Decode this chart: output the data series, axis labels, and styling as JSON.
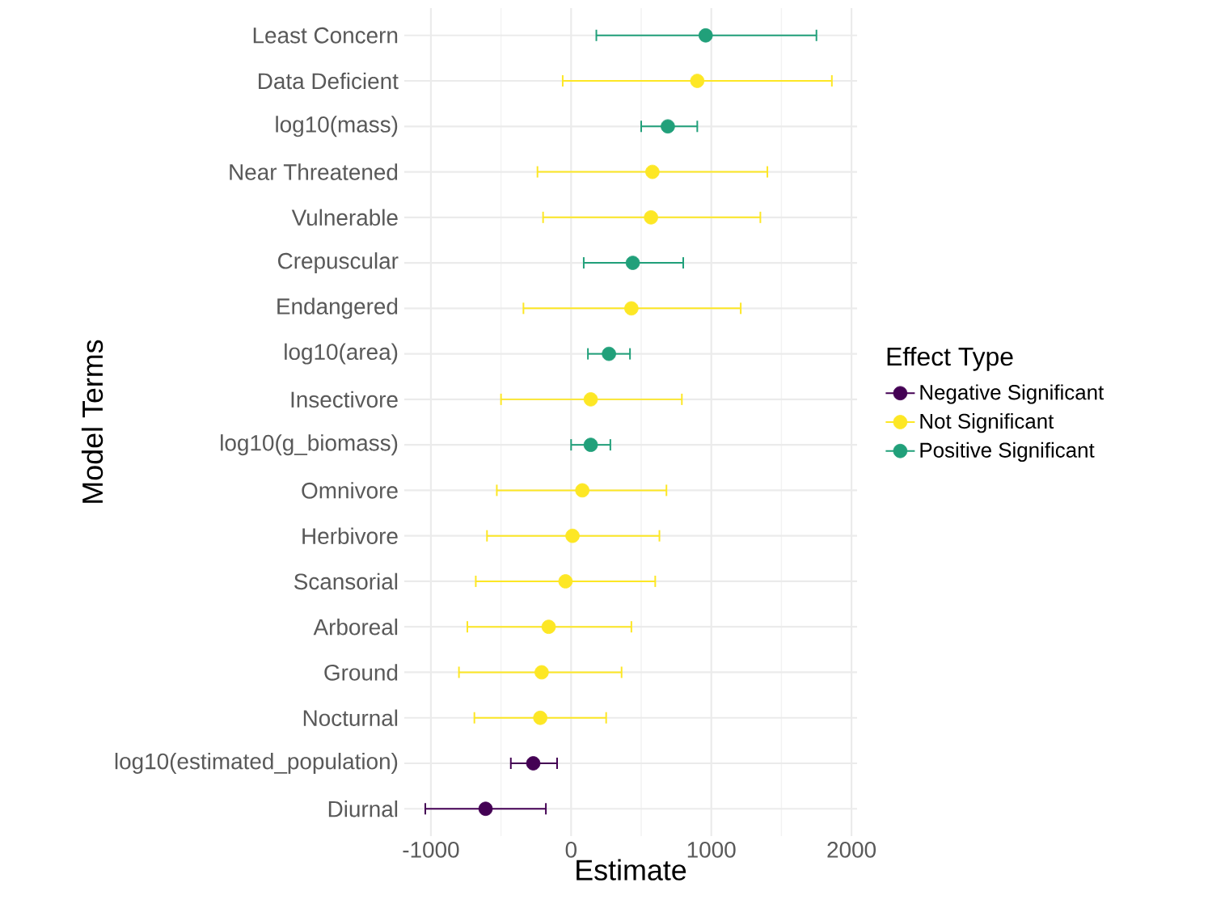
{
  "chart_data": {
    "type": "scatter",
    "orientation": "horizontal",
    "xlabel": "Estimate",
    "ylabel": "Model Terms",
    "legend_title": "Effect Type",
    "legend": "right",
    "grid": true,
    "marker": "circle",
    "categories": [
      "Least Concern",
      "Data Deficient",
      "log10(mass)",
      "Near Threatened",
      "Vulnerable",
      "Crepuscular",
      "Endangered",
      "log10(area)",
      "Insectivore",
      "log10(g_biomass)",
      "Omnivore",
      "Herbivore",
      "Scansorial",
      "Arboreal",
      "Ground",
      "Nocturnal",
      "log10(estimated_population)",
      "Diurnal"
    ],
    "xlim": [
      -1190,
      2040
    ],
    "xticks": [
      -1000,
      0,
      1000,
      2000
    ],
    "series": [
      {
        "name": "Negative Significant",
        "color": "#440154",
        "values": [
          null,
          null,
          null,
          null,
          null,
          null,
          null,
          null,
          null,
          null,
          null,
          null,
          null,
          null,
          null,
          null,
          -270,
          -610
        ],
        "errors": [
          null,
          null,
          null,
          null,
          null,
          null,
          null,
          null,
          null,
          null,
          null,
          null,
          null,
          null,
          null,
          null,
          [
            -430,
            -100
          ],
          [
            -1040,
            -180
          ]
        ]
      },
      {
        "name": "Not Significant",
        "color": "#fde725",
        "values": [
          null,
          900,
          null,
          580,
          570,
          null,
          430,
          null,
          140,
          null,
          80,
          10,
          -40,
          -160,
          -210,
          -220,
          null,
          null
        ],
        "errors": [
          null,
          [
            -60,
            1860
          ],
          null,
          [
            -240,
            1400
          ],
          [
            -200,
            1350
          ],
          null,
          [
            -340,
            1210
          ],
          null,
          [
            -500,
            790
          ],
          null,
          [
            -530,
            680
          ],
          [
            -600,
            630
          ],
          [
            -680,
            600
          ],
          [
            -740,
            430
          ],
          [
            -800,
            360
          ],
          [
            -690,
            250
          ],
          null,
          null
        ]
      },
      {
        "name": "Positive Significant",
        "color": "#21a07a",
        "values": [
          960,
          null,
          690,
          null,
          null,
          440,
          null,
          270,
          null,
          140,
          null,
          null,
          null,
          null,
          null,
          null,
          null,
          null
        ],
        "errors": [
          [
            180,
            1750
          ],
          null,
          [
            500,
            900
          ],
          null,
          null,
          [
            90,
            800
          ],
          null,
          [
            120,
            420
          ],
          null,
          [
            0,
            280
          ],
          null,
          null,
          null,
          null,
          null,
          null,
          null,
          null
        ]
      }
    ]
  }
}
